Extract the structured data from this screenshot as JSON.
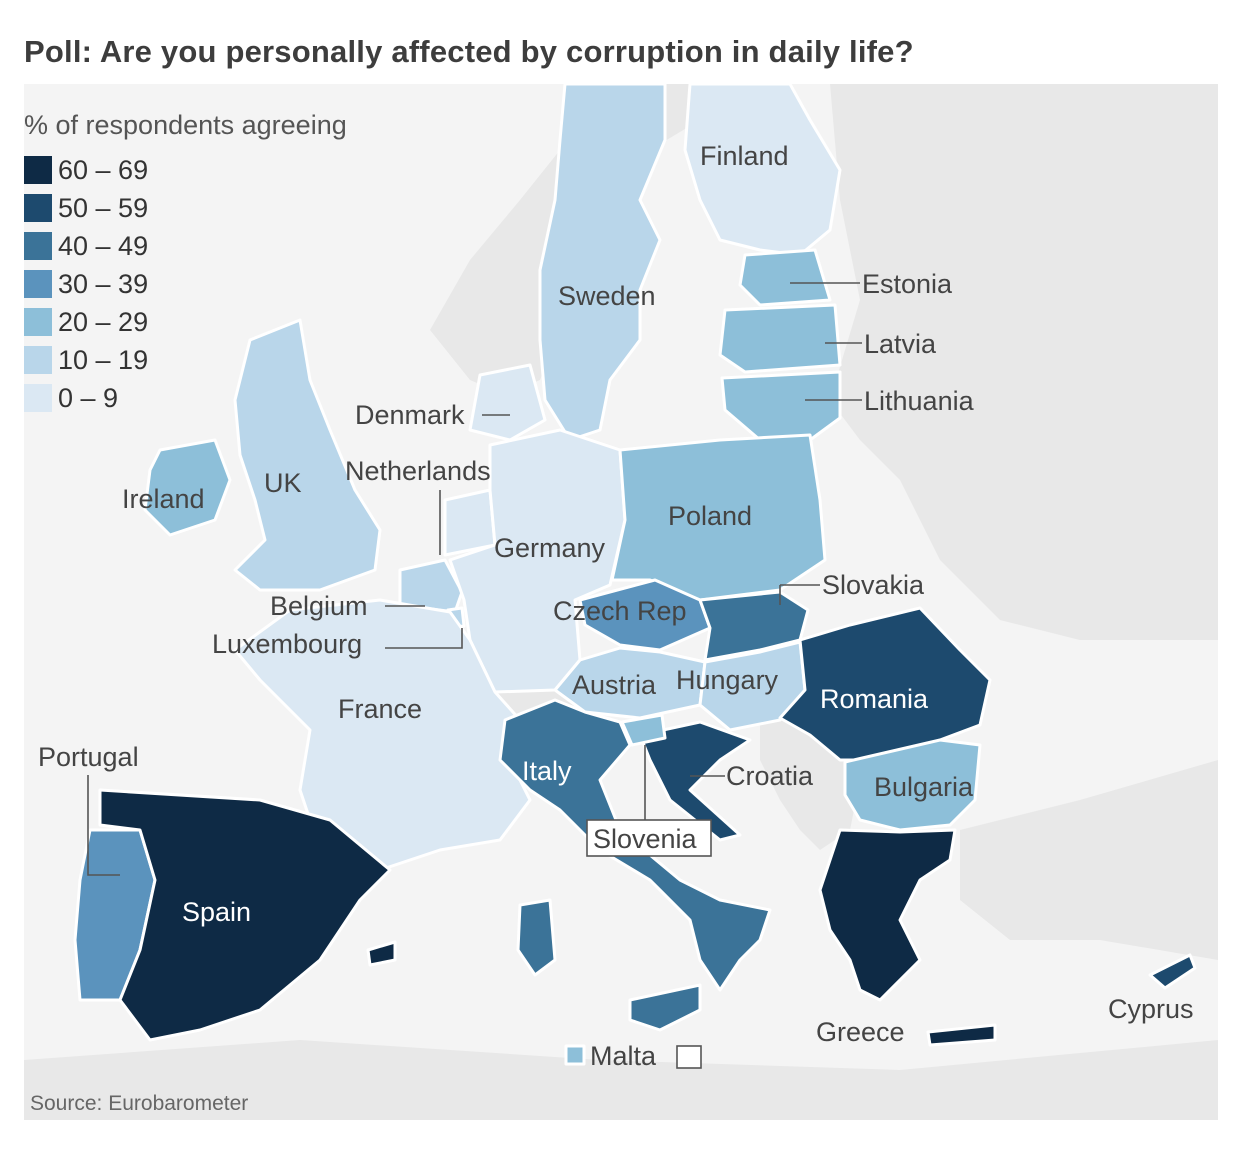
{
  "title": "Poll: Are you personally affected by corruption in daily life?",
  "source": "Source: Eurobarometer",
  "legend": {
    "title": "% of respondents agreeing",
    "items": [
      {
        "label": "60 – 69",
        "color": "#0e2a45"
      },
      {
        "label": "50 – 59",
        "color": "#1d4a6e"
      },
      {
        "label": "40 – 49",
        "color": "#3b7398"
      },
      {
        "label": "30 – 39",
        "color": "#5b93bd"
      },
      {
        "label": "20 – 29",
        "color": "#8dbfd9"
      },
      {
        "label": "10 – 19",
        "color": "#b9d6ea"
      },
      {
        "label": "0 – 9",
        "color": "#dbe8f3"
      }
    ]
  },
  "countries": {
    "finland": "Finland",
    "sweden": "Sweden",
    "estonia": "Estonia",
    "latvia": "Latvia",
    "lithuania": "Lithuania",
    "denmark": "Denmark",
    "netherlands": "Netherlands",
    "ireland": "Ireland",
    "uk": "UK",
    "poland": "Poland",
    "germany": "Germany",
    "slovakia": "Slovakia",
    "belgium": "Belgium",
    "czech": "Czech Rep",
    "luxembourg": "Luxembourg",
    "austria": "Austria",
    "hungary": "Hungary",
    "romania": "Romania",
    "france": "France",
    "portugal": "Portugal",
    "italy": "Italy",
    "croatia": "Croatia",
    "bulgaria": "Bulgaria",
    "slovenia": "Slovenia",
    "spain": "Spain",
    "greece": "Greece",
    "cyprus": "Cyprus",
    "malta": "Malta"
  }
}
